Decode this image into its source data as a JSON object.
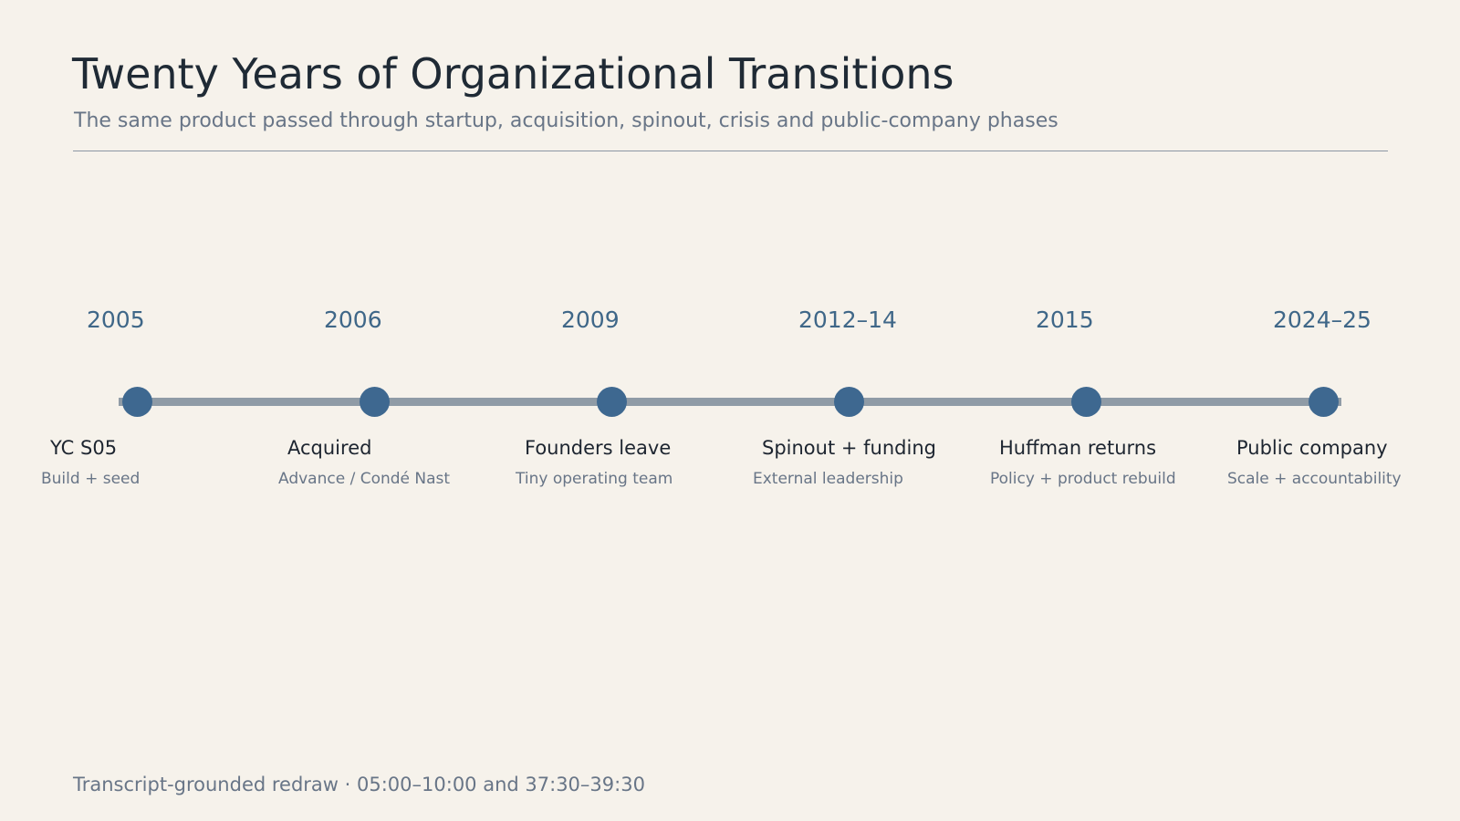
{
  "header": {
    "title": "Twenty Years of Organizational Transitions",
    "subtitle": "The same product passed through startup, acquisition, spinout, crisis and public-company phases"
  },
  "colors": {
    "background": "#f6f2eb",
    "accent": "#3e6890",
    "track": "#8f9ba6",
    "muted_text": "#687587"
  },
  "timeline": {
    "events": [
      {
        "year": "2005",
        "label": "YC S05",
        "detail": "Build + seed"
      },
      {
        "year": "2006",
        "label": "Acquired",
        "detail": "Advance / Condé Nast"
      },
      {
        "year": "2009",
        "label": "Founders leave",
        "detail": "Tiny operating team"
      },
      {
        "year": "2012–14",
        "label": "Spinout + funding",
        "detail": "External leadership"
      },
      {
        "year": "2015",
        "label": "Huffman returns",
        "detail": "Policy + product rebuild"
      },
      {
        "year": "2024–25",
        "label": "Public company",
        "detail": "Scale + accountability"
      }
    ]
  },
  "footer": {
    "note": "Transcript-grounded redraw · 05:00–10:00 and 37:30–39:30"
  }
}
